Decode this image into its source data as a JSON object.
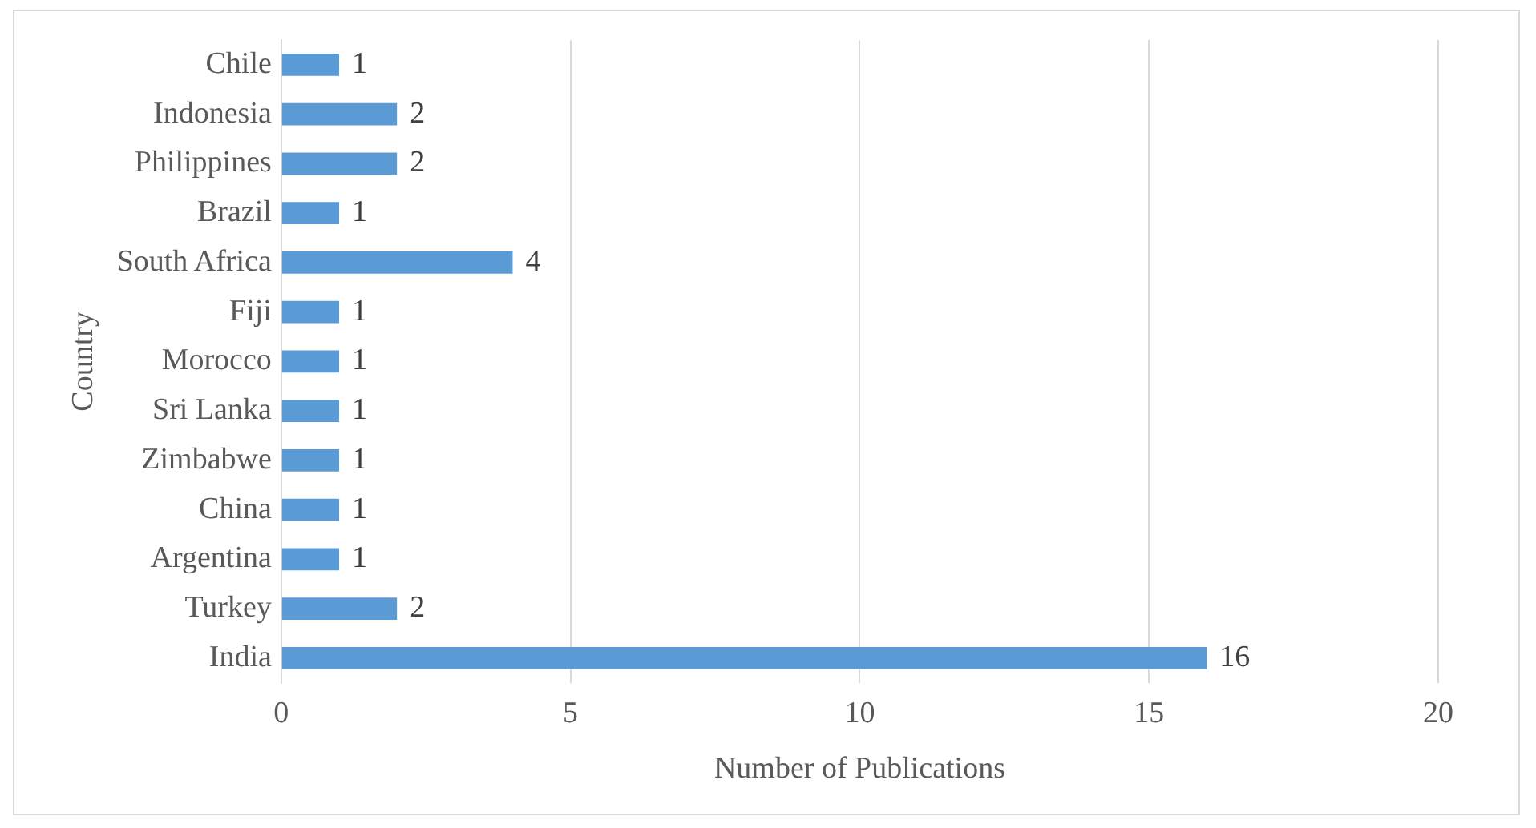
{
  "chart_data": {
    "type": "bar",
    "orientation": "horizontal",
    "xlabel": "Number of Publications",
    "ylabel": "Country",
    "categories": [
      "Chile",
      "Indonesia",
      "Philippines",
      "Brazil",
      "South Africa",
      "Fiji",
      "Morocco",
      "Sri Lanka",
      "Zimbabwe",
      "China",
      "Argentina",
      "Turkey",
      "India"
    ],
    "values": [
      1,
      2,
      2,
      1,
      4,
      1,
      1,
      1,
      1,
      1,
      1,
      2,
      16
    ],
    "color": "#5b9bd5",
    "xlim": [
      0,
      20
    ],
    "xticks": [
      0,
      5,
      10,
      15,
      20
    ],
    "grid": "x",
    "data_labels": true
  }
}
